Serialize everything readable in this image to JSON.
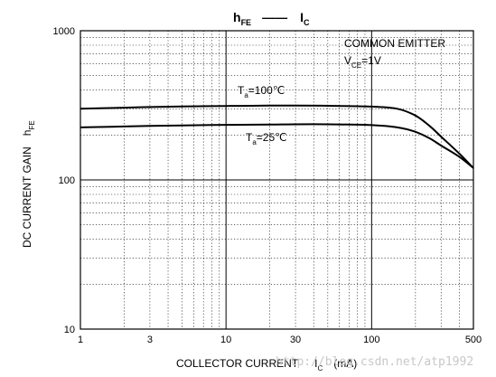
{
  "chart_data": {
    "type": "line",
    "title": {
      "main": "h",
      "main_sub": "FE",
      "sep": "——",
      "right": "I",
      "right_sub": "C"
    },
    "xlabel": {
      "text": "COLLECTOR CURRENT",
      "sym": "I",
      "sym_sub": "C",
      "unit": "(mA)"
    },
    "ylabel": {
      "text": "DC CURRENT GAIN",
      "sym": "h",
      "sym_sub": "FE"
    },
    "x_scale": "log",
    "y_scale": "log",
    "xlim": [
      1,
      500
    ],
    "ylim": [
      10,
      1000
    ],
    "x_ticks": [
      1,
      3,
      10,
      30,
      100,
      500
    ],
    "x_tick_labels": [
      "1",
      "3",
      "10",
      "30",
      "100",
      "500"
    ],
    "y_ticks": [
      10,
      100,
      1000
    ],
    "y_tick_labels": [
      "10",
      "100",
      "1000"
    ],
    "grid": true,
    "annotation": {
      "line1": "COMMON EMITTER",
      "line2_sym": "V",
      "line2_sub": "CE",
      "line2_rest": "=1V"
    },
    "series": [
      {
        "name": "Ta=100℃",
        "label_sym": "T",
        "label_sub": "a",
        "label_rest": "=100℃",
        "x": [
          1,
          2,
          3,
          5,
          10,
          20,
          30,
          50,
          100,
          150,
          200,
          250,
          300,
          400,
          500
        ],
        "y": [
          300,
          305,
          308,
          311,
          313,
          315,
          315,
          314,
          310,
          300,
          270,
          230,
          195,
          150,
          120
        ]
      },
      {
        "name": "Ta=25℃",
        "label_sym": "T",
        "label_sub": "a",
        "label_rest": "=25℃",
        "x": [
          1,
          2,
          3,
          5,
          10,
          20,
          30,
          50,
          100,
          150,
          200,
          250,
          300,
          400,
          500
        ],
        "y": [
          225,
          228,
          230,
          232,
          234,
          235,
          236,
          236,
          233,
          225,
          210,
          190,
          170,
          143,
          120
        ]
      }
    ]
  },
  "watermark": "http://blog.csdn.net/atp1992"
}
